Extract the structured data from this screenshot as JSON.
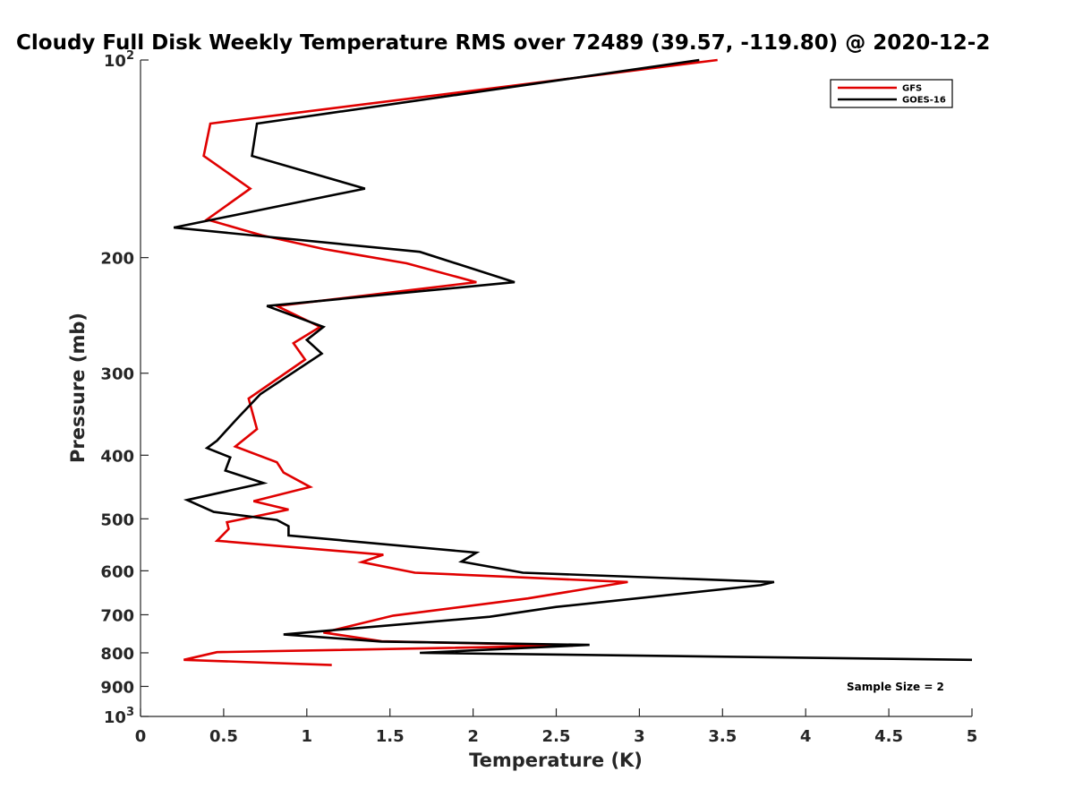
{
  "chart_data": {
    "type": "line",
    "title": "Cloudy Full Disk Weekly Temperature RMS over 72489 (39.57, -119.80) @ 2020-12-2",
    "xlabel": "Temperature (K)",
    "ylabel": "Pressure (mb)",
    "xlim": [
      0,
      5
    ],
    "ylim": [
      1000,
      100
    ],
    "yscale": "log",
    "y_reversed": true,
    "grid": false,
    "legend_position": "top-right",
    "x_ticks": [
      0,
      0.5,
      1,
      1.5,
      2,
      2.5,
      3,
      3.5,
      4,
      4.5,
      5
    ],
    "x_tick_labels": [
      "0",
      "0.5",
      "1",
      "1.5",
      "2",
      "2.5",
      "3",
      "3.5",
      "4",
      "4.5",
      "5"
    ],
    "y_ticks": [
      100,
      200,
      300,
      400,
      500,
      600,
      700,
      800,
      900,
      1000
    ],
    "y_tick_labels": [
      {
        "base": "10",
        "exp": "2"
      },
      {
        "base": "200",
        "exp": ""
      },
      {
        "base": "300",
        "exp": ""
      },
      {
        "base": "400",
        "exp": ""
      },
      {
        "base": "500",
        "exp": ""
      },
      {
        "base": "600",
        "exp": ""
      },
      {
        "base": "700",
        "exp": ""
      },
      {
        "base": "800",
        "exp": ""
      },
      {
        "base": "900",
        "exp": ""
      },
      {
        "base": "10",
        "exp": "3"
      }
    ],
    "annotation": "Sample Size = 2",
    "series": [
      {
        "name": "GFS",
        "color": "#e00000",
        "points": [
          [
            3.47,
            100
          ],
          [
            0.42,
            125
          ],
          [
            0.38,
            140
          ],
          [
            0.66,
            157
          ],
          [
            0.4,
            175
          ],
          [
            0.73,
            185
          ],
          [
            1.1,
            194
          ],
          [
            1.6,
            204
          ],
          [
            2.02,
            218
          ],
          [
            0.82,
            237
          ],
          [
            1.08,
            255
          ],
          [
            0.92,
            270
          ],
          [
            0.99,
            286
          ],
          [
            0.65,
            328
          ],
          [
            0.7,
            365
          ],
          [
            0.57,
            388
          ],
          [
            0.82,
            410
          ],
          [
            0.86,
            425
          ],
          [
            1.02,
            447
          ],
          [
            0.68,
            470
          ],
          [
            0.89,
            484
          ],
          [
            0.52,
            506
          ],
          [
            0.53,
            518
          ],
          [
            0.46,
            540
          ],
          [
            1.46,
            567
          ],
          [
            1.33,
            582
          ],
          [
            1.65,
            604
          ],
          [
            2.93,
            624
          ],
          [
            2.7,
            638
          ],
          [
            2.33,
            661
          ],
          [
            1.52,
            702
          ],
          [
            1.1,
            745
          ],
          [
            1.45,
            768
          ],
          [
            2.6,
            780
          ],
          [
            0.46,
            798
          ],
          [
            0.26,
            820
          ],
          [
            1.15,
            835
          ]
        ]
      },
      {
        "name": "GOES-16",
        "color": "#000000",
        "points": [
          [
            3.36,
            100
          ],
          [
            0.7,
            125
          ],
          [
            0.67,
            140
          ],
          [
            1.35,
            157
          ],
          [
            0.2,
            180
          ],
          [
            1.68,
            196
          ],
          [
            2.25,
            218
          ],
          [
            0.76,
            237
          ],
          [
            1.1,
            255
          ],
          [
            1.0,
            267
          ],
          [
            1.09,
            280
          ],
          [
            0.72,
            323
          ],
          [
            0.58,
            352
          ],
          [
            0.46,
            380
          ],
          [
            0.4,
            390
          ],
          [
            0.54,
            403
          ],
          [
            0.51,
            422
          ],
          [
            0.74,
            441
          ],
          [
            0.28,
            468
          ],
          [
            0.44,
            488
          ],
          [
            0.82,
            502
          ],
          [
            0.89,
            513
          ],
          [
            0.89,
            530
          ],
          [
            2.02,
            563
          ],
          [
            1.93,
            581
          ],
          [
            2.3,
            604
          ],
          [
            3.81,
            624
          ],
          [
            3.73,
            631
          ],
          [
            2.5,
            681
          ],
          [
            2.1,
            705
          ],
          [
            0.86,
            750
          ],
          [
            1.45,
            769
          ],
          [
            2.7,
            778
          ],
          [
            1.68,
            800
          ],
          [
            5.0,
            820
          ]
        ]
      }
    ]
  }
}
